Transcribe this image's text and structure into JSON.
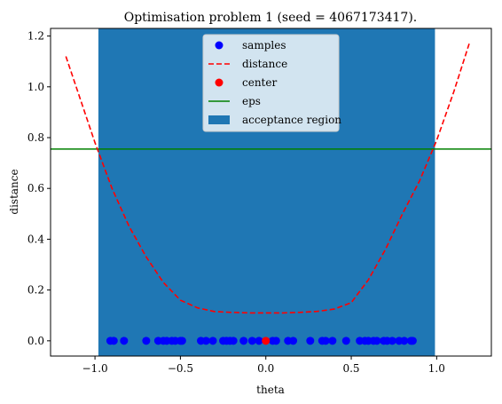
{
  "chart_data": {
    "type": "line",
    "title": "Optimisation problem 1 (seed = 4067173417).",
    "xlabel": "theta",
    "ylabel": "distance",
    "xlim": [
      -1.26,
      1.32
    ],
    "ylim": [
      -0.06,
      1.23
    ],
    "xticks": [
      -1.0,
      -0.5,
      0.0,
      0.5,
      1.0
    ],
    "xtick_labels": [
      "−1.0",
      "−0.5",
      "0.0",
      "0.5",
      "1.0"
    ],
    "yticks": [
      0.0,
      0.2,
      0.4,
      0.6,
      0.8,
      1.0,
      1.2
    ],
    "ytick_labels": [
      "0.0",
      "0.2",
      "0.4",
      "0.6",
      "0.8",
      "1.0",
      "1.2"
    ],
    "grid": false,
    "legend_position": "top-center",
    "legend": [
      {
        "label": "samples",
        "kind": "marker",
        "color": "#0000ff"
      },
      {
        "label": "distance",
        "kind": "dashed-line",
        "color": "#ff0000"
      },
      {
        "label": "center",
        "kind": "marker",
        "color": "#ff0000"
      },
      {
        "label": "eps",
        "kind": "line",
        "color": "#008000"
      },
      {
        "label": "acceptance region",
        "kind": "patch",
        "color": "#1f77b4"
      }
    ],
    "acceptance_region": {
      "x_start": -0.98,
      "x_end": 0.99,
      "color": "#1f77b4"
    },
    "eps": {
      "y": 0.755,
      "color": "#008000"
    },
    "center": {
      "x": 0.0,
      "y": 0.0,
      "color": "#ff0000"
    },
    "samples": {
      "color": "#0000ff",
      "y": 0.0,
      "x": [
        -0.91,
        -0.89,
        -0.83,
        -0.7,
        -0.63,
        -0.6,
        -0.58,
        -0.55,
        -0.53,
        -0.5,
        -0.49,
        -0.38,
        -0.35,
        -0.31,
        -0.25,
        -0.23,
        -0.21,
        -0.19,
        -0.13,
        -0.08,
        -0.04,
        0.04,
        0.06,
        0.13,
        0.16,
        0.26,
        0.33,
        0.35,
        0.39,
        0.47,
        0.55,
        0.58,
        0.6,
        0.63,
        0.65,
        0.69,
        0.71,
        0.74,
        0.78,
        0.81,
        0.85,
        0.86
      ]
    },
    "distance": {
      "color": "#ff0000",
      "style": "dashed",
      "x": [
        -1.17,
        -1.1,
        -1.0,
        -0.9,
        -0.8,
        -0.7,
        -0.6,
        -0.5,
        -0.4,
        -0.3,
        -0.2,
        -0.1,
        0.0,
        0.1,
        0.2,
        0.3,
        0.4,
        0.5,
        0.6,
        0.7,
        0.8,
        0.9,
        1.0,
        1.1,
        1.19
      ],
      "y": [
        1.12,
        0.98,
        0.78,
        0.6,
        0.45,
        0.33,
        0.23,
        0.16,
        0.13,
        0.115,
        0.112,
        0.11,
        0.11,
        0.11,
        0.112,
        0.116,
        0.125,
        0.15,
        0.24,
        0.36,
        0.5,
        0.63,
        0.79,
        0.98,
        1.17
      ]
    }
  }
}
